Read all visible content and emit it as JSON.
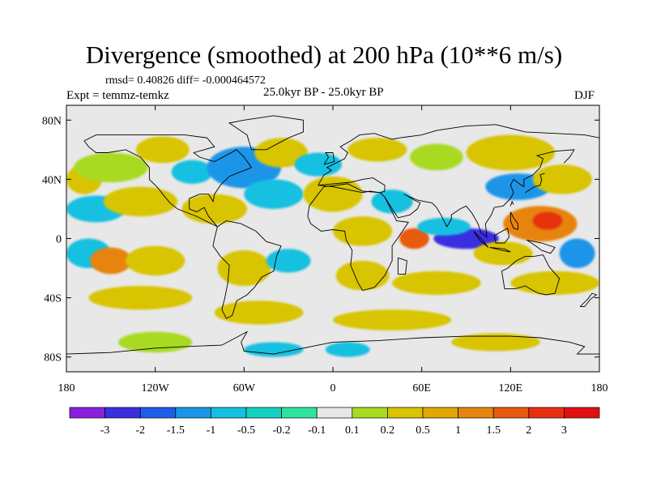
{
  "title": "Divergence (smoothed) at 200 hPa (10**6 m/s)",
  "stats": "rmsd= 0.40826 diff= -0.000464572",
  "experiment": "Expt = temmz-temkz",
  "period": "25.0kyr BP - 25.0kyr BP",
  "season": "DJF",
  "axes": {
    "lat_labels": [
      "80N",
      "40N",
      "0",
      "40S",
      "80S"
    ],
    "lat_values": [
      80,
      40,
      0,
      -40,
      -80
    ],
    "lon_labels": [
      "180",
      "120W",
      "60W",
      "0",
      "60E",
      "120E",
      "180"
    ],
    "lon_values": [
      -180,
      -120,
      -60,
      0,
      60,
      120,
      180
    ]
  },
  "colorbar": {
    "labels": [
      "-3",
      "-2",
      "-1.5",
      "-1",
      "-0.5",
      "-0.2",
      "-0.1",
      "0.1",
      "0.2",
      "0.5",
      "1",
      "1.5",
      "2",
      "3"
    ],
    "colors": [
      "#8b1fe0",
      "#3a2fe0",
      "#1c5ee8",
      "#1b95e8",
      "#14c0e0",
      "#13d3c0",
      "#2ee3a0",
      "#e8e8e8",
      "#a8da20",
      "#d8c400",
      "#e0a800",
      "#e78410",
      "#e85a10",
      "#e83010",
      "#e01010"
    ]
  },
  "field_blobs": [
    {
      "lon": -168,
      "lat": 40,
      "rx": 12,
      "ry": 10,
      "c": 9
    },
    {
      "lon": -150,
      "lat": 48,
      "rx": 25,
      "ry": 10,
      "c": 8
    },
    {
      "lon": -115,
      "lat": 60,
      "rx": 18,
      "ry": 9,
      "c": 9
    },
    {
      "lon": -95,
      "lat": 45,
      "rx": 14,
      "ry": 8,
      "c": 4
    },
    {
      "lon": -60,
      "lat": 48,
      "rx": 25,
      "ry": 14,
      "c": 3
    },
    {
      "lon": -35,
      "lat": 58,
      "rx": 18,
      "ry": 10,
      "c": 9
    },
    {
      "lon": -10,
      "lat": 50,
      "rx": 16,
      "ry": 8,
      "c": 4
    },
    {
      "lon": 30,
      "lat": 60,
      "rx": 20,
      "ry": 8,
      "c": 9
    },
    {
      "lon": 70,
      "lat": 55,
      "rx": 18,
      "ry": 9,
      "c": 8
    },
    {
      "lon": 120,
      "lat": 58,
      "rx": 30,
      "ry": 12,
      "c": 9
    },
    {
      "lon": 125,
      "lat": 35,
      "rx": 22,
      "ry": 9,
      "c": 3
    },
    {
      "lon": 155,
      "lat": 40,
      "rx": 20,
      "ry": 10,
      "c": 9
    },
    {
      "lon": -160,
      "lat": 20,
      "rx": 20,
      "ry": 9,
      "c": 4
    },
    {
      "lon": -130,
      "lat": 25,
      "rx": 25,
      "ry": 10,
      "c": 9
    },
    {
      "lon": -80,
      "lat": 20,
      "rx": 22,
      "ry": 10,
      "c": 9
    },
    {
      "lon": -40,
      "lat": 30,
      "rx": 20,
      "ry": 10,
      "c": 4
    },
    {
      "lon": 0,
      "lat": 30,
      "rx": 20,
      "ry": 12,
      "c": 9
    },
    {
      "lon": 40,
      "lat": 25,
      "rx": 14,
      "ry": 8,
      "c": 4
    },
    {
      "lon": 20,
      "lat": 5,
      "rx": 20,
      "ry": 10,
      "c": 9
    },
    {
      "lon": 55,
      "lat": 0,
      "rx": 10,
      "ry": 7,
      "c": 12
    },
    {
      "lon": 90,
      "lat": 0,
      "rx": 22,
      "ry": 7,
      "c": 1
    },
    {
      "lon": 75,
      "lat": 8,
      "rx": 18,
      "ry": 6,
      "c": 4
    },
    {
      "lon": 140,
      "lat": 10,
      "rx": 25,
      "ry": 12,
      "c": 11
    },
    {
      "lon": 145,
      "lat": 12,
      "rx": 10,
      "ry": 6,
      "c": 13
    },
    {
      "lon": 115,
      "lat": -10,
      "rx": 20,
      "ry": 8,
      "c": 9
    },
    {
      "lon": 165,
      "lat": -10,
      "rx": 12,
      "ry": 10,
      "c": 3
    },
    {
      "lon": -165,
      "lat": -10,
      "rx": 15,
      "ry": 10,
      "c": 4
    },
    {
      "lon": -150,
      "lat": -15,
      "rx": 14,
      "ry": 9,
      "c": 11
    },
    {
      "lon": -120,
      "lat": -15,
      "rx": 20,
      "ry": 10,
      "c": 9
    },
    {
      "lon": -60,
      "lat": -20,
      "rx": 18,
      "ry": 12,
      "c": 9
    },
    {
      "lon": -30,
      "lat": -15,
      "rx": 15,
      "ry": 8,
      "c": 4
    },
    {
      "lon": 20,
      "lat": -25,
      "rx": 18,
      "ry": 10,
      "c": 9
    },
    {
      "lon": 70,
      "lat": -30,
      "rx": 30,
      "ry": 8,
      "c": 9
    },
    {
      "lon": 150,
      "lat": -30,
      "rx": 30,
      "ry": 8,
      "c": 9
    },
    {
      "lon": -130,
      "lat": -40,
      "rx": 35,
      "ry": 8,
      "c": 9
    },
    {
      "lon": -50,
      "lat": -50,
      "rx": 30,
      "ry": 8,
      "c": 9
    },
    {
      "lon": 40,
      "lat": -55,
      "rx": 40,
      "ry": 7,
      "c": 9
    },
    {
      "lon": -120,
      "lat": -70,
      "rx": 25,
      "ry": 7,
      "c": 8
    },
    {
      "lon": -40,
      "lat": -75,
      "rx": 20,
      "ry": 5,
      "c": 4
    },
    {
      "lon": 110,
      "lat": -70,
      "rx": 30,
      "ry": 6,
      "c": 9
    },
    {
      "lon": 10,
      "lat": -75,
      "rx": 15,
      "ry": 5,
      "c": 4
    }
  ]
}
